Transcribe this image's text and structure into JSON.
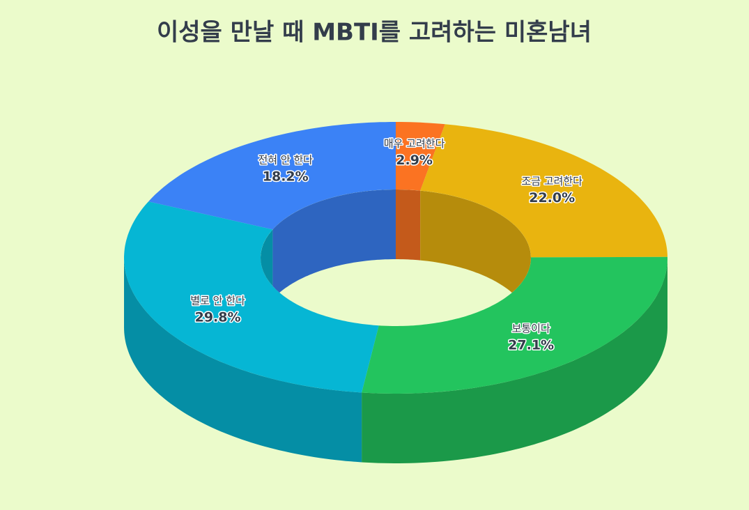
{
  "chart_data": {
    "type": "donut3d",
    "title": "이성을 만날 때 MBTI를 고려하는 미혼남녀",
    "categories": [
      "매우 고려한다",
      "조금 고려한다",
      "보통이다",
      "별로 안 한다",
      "전혀 안 한다"
    ],
    "values": [
      2.9,
      22.0,
      27.1,
      29.8,
      18.2
    ],
    "value_labels": [
      "2.9%",
      "22.0%",
      "27.1%",
      "29.8%",
      "18.2%"
    ],
    "colors": [
      "#fb7322",
      "#e9b40f",
      "#23c45e",
      "#06b6d4",
      "#3b82f6"
    ]
  }
}
